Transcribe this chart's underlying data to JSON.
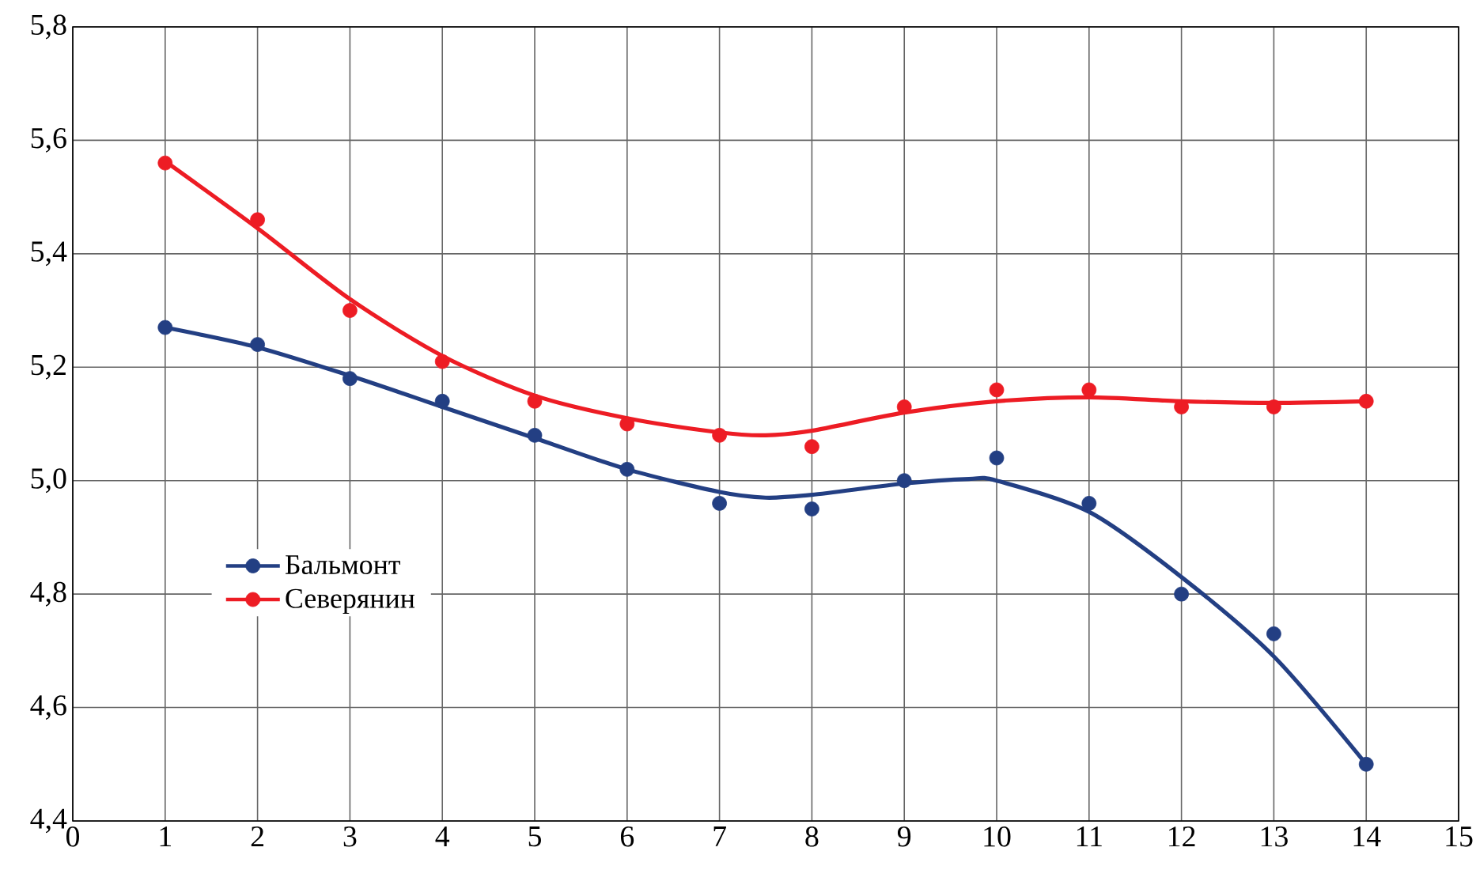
{
  "chart_data": {
    "type": "scatter",
    "xlim": [
      0,
      15
    ],
    "ylim": [
      4.4,
      5.8
    ],
    "xticks": [
      0,
      1,
      2,
      3,
      4,
      5,
      6,
      7,
      8,
      9,
      10,
      11,
      12,
      13,
      14,
      15
    ],
    "yticks": [
      {
        "value": 4.4,
        "label": "4,4"
      },
      {
        "value": 4.6,
        "label": "4,6"
      },
      {
        "value": 4.8,
        "label": "4,8"
      },
      {
        "value": 5.0,
        "label": "5,0"
      },
      {
        "value": 5.2,
        "label": "5,2"
      },
      {
        "value": 5.4,
        "label": "5,4"
      },
      {
        "value": 5.6,
        "label": "5,6"
      },
      {
        "value": 5.8,
        "label": "5,8"
      }
    ],
    "grid": true,
    "legend": "left",
    "line_style": "solid",
    "series": [
      {
        "marker": "circle",
        "name": "Бальмонт",
        "color": "#233f83",
        "x": [
          1,
          2,
          3,
          4,
          5,
          6,
          7,
          8,
          9,
          10,
          11,
          12,
          13,
          14
        ],
        "values": [
          5.27,
          5.24,
          5.18,
          5.14,
          5.08,
          5.02,
          4.96,
          4.95,
          5.0,
          5.04,
          4.96,
          4.8,
          4.73,
          4.5
        ]
      },
      {
        "marker": "circle",
        "name": "Северянин",
        "color": "#ed1c24",
        "x": [
          1,
          2,
          3,
          4,
          5,
          6,
          7,
          8,
          9,
          10,
          11,
          12,
          13,
          14
        ],
        "values": [
          5.56,
          5.46,
          5.3,
          5.21,
          5.14,
          5.1,
          5.08,
          5.06,
          5.13,
          5.16,
          5.16,
          5.13,
          5.13,
          5.14
        ]
      },
      {
        "type": "line",
        "marker": "none",
        "color": "#233f83",
        "x": [
          1,
          2,
          3,
          4,
          5,
          6,
          7,
          7.5,
          8,
          9,
          9.7,
          10,
          11,
          12,
          13,
          14
        ],
        "values": [
          5.27,
          5.235,
          5.185,
          5.13,
          5.075,
          5.02,
          4.98,
          4.97,
          4.975,
          4.995,
          5.003,
          5.0,
          4.945,
          4.83,
          4.69,
          4.5
        ]
      },
      {
        "type": "line",
        "marker": "none",
        "color": "#ed1c24",
        "x": [
          1,
          2,
          3,
          4,
          5,
          6,
          7,
          7.5,
          8,
          9,
          10,
          11,
          12,
          13,
          14
        ],
        "values": [
          5.563,
          5.445,
          5.32,
          5.22,
          5.15,
          5.11,
          5.085,
          5.08,
          5.088,
          5.12,
          5.14,
          5.147,
          5.14,
          5.137,
          5.14
        ]
      }
    ]
  }
}
